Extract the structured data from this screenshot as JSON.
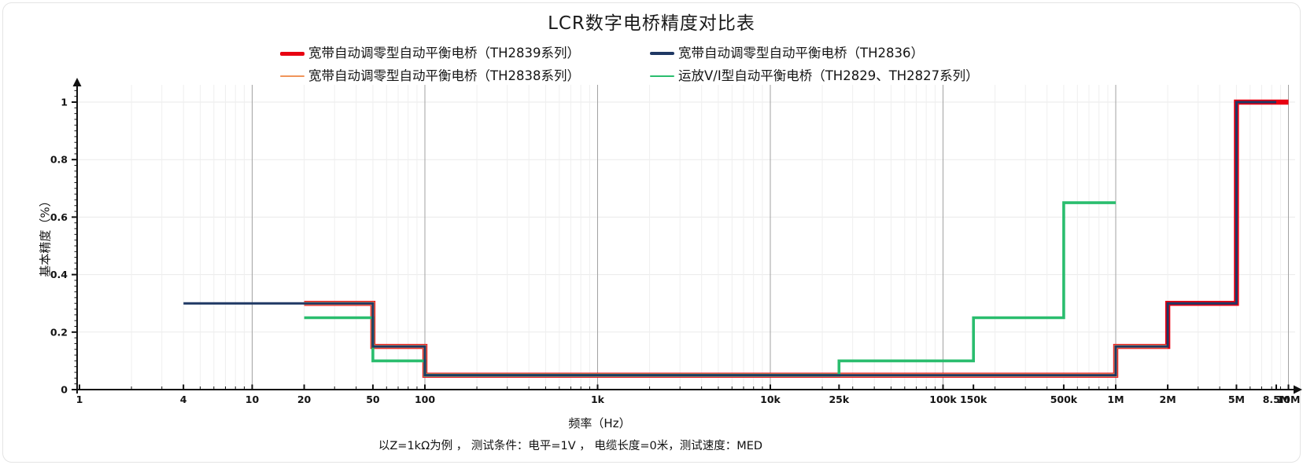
{
  "legend": {
    "items": [
      {
        "label": "宽带自动调零型自动平衡电桥（TH2839系列）",
        "color": "#e80011",
        "thickness": 5
      },
      {
        "label": "宽带自动调零型自动平衡电桥（TH2836）",
        "color": "#1f3864",
        "thickness": 3.5
      },
      {
        "label": "宽带自动调零型自动平衡电桥（TH2838系列）",
        "color": "#f0955a",
        "thickness": 2.5
      },
      {
        "label": "运放V/I型自动平衡电桥（TH2829、TH2827系列）",
        "color": "#2abd6e",
        "thickness": 2.5
      }
    ]
  },
  "chart_data": {
    "type": "line",
    "title": "LCR数字电桥精度对比表",
    "x_scale": "log",
    "xlabel": "频率（Hz）",
    "ylabel": "基本精度（%）",
    "xlim": [
      1,
      10000000
    ],
    "ylim": [
      0,
      1.05
    ],
    "grid": true,
    "legend_position": "top",
    "x_ticks": [
      {
        "f": 1,
        "label": "1"
      },
      {
        "f": 4,
        "label": "4"
      },
      {
        "f": 10,
        "label": "10"
      },
      {
        "f": 20,
        "label": "20"
      },
      {
        "f": 50,
        "label": "50"
      },
      {
        "f": 100,
        "label": "100"
      },
      {
        "f": 1000,
        "label": "1k"
      },
      {
        "f": 10000,
        "label": "10k"
      },
      {
        "f": 25000,
        "label": "25k"
      },
      {
        "f": 100000,
        "label": "100k"
      },
      {
        "f": 150000,
        "label": "150k"
      },
      {
        "f": 500000,
        "label": "500k"
      },
      {
        "f": 1000000,
        "label": "1M"
      },
      {
        "f": 2000000,
        "label": "2M"
      },
      {
        "f": 5000000,
        "label": "5M"
      },
      {
        "f": 8500000,
        "label": "8.5M"
      },
      {
        "f": 10000000,
        "label": "10M"
      }
    ],
    "y_ticks": [
      {
        "v": 0,
        "label": "0"
      },
      {
        "v": 0.2,
        "label": "0.2"
      },
      {
        "v": 0.4,
        "label": "0.4"
      },
      {
        "v": 0.6,
        "label": "0.6"
      },
      {
        "v": 0.8,
        "label": "0.8"
      },
      {
        "v": 1,
        "label": "1"
      }
    ],
    "series": [
      {
        "id": "th2839",
        "name": "宽带自动调零型自动平衡电桥（TH2839系列）",
        "color": "#e80011",
        "width": 6.4,
        "points": [
          [
            20,
            0.3
          ],
          [
            50,
            0.3
          ],
          [
            50,
            0.15
          ],
          [
            100,
            0.15
          ],
          [
            100,
            0.05
          ],
          [
            1000000,
            0.05
          ],
          [
            1000000,
            0.15
          ],
          [
            2000000,
            0.15
          ],
          [
            2000000,
            0.3
          ],
          [
            5000000,
            0.3
          ],
          [
            5000000,
            1
          ],
          [
            10000000,
            1
          ]
        ]
      },
      {
        "id": "th2838",
        "name": "宽带自动调零型自动平衡电桥（TH2838系列）",
        "color": "#f0955a",
        "width": 4.6,
        "points": [
          [
            20,
            0.3
          ],
          [
            50,
            0.3
          ],
          [
            50,
            0.15
          ],
          [
            100,
            0.15
          ],
          [
            100,
            0.05
          ],
          [
            1000000,
            0.05
          ],
          [
            1000000,
            0.15
          ],
          [
            2000000,
            0.15
          ]
        ]
      },
      {
        "id": "th2829-th2827",
        "name": "运放V/I型自动平衡电桥（TH2829、TH2827系列）",
        "color": "#2abd6e",
        "width": 3.6,
        "points": [
          [
            20,
            0.25
          ],
          [
            50,
            0.25
          ],
          [
            50,
            0.1
          ],
          [
            100,
            0.1
          ],
          [
            100,
            0.05
          ],
          [
            25000,
            0.05
          ],
          [
            25000,
            0.1
          ],
          [
            150000,
            0.1
          ],
          [
            150000,
            0.25
          ],
          [
            500000,
            0.25
          ],
          [
            500000,
            0.65
          ],
          [
            1000000,
            0.65
          ]
        ]
      },
      {
        "id": "th2836",
        "name": "宽带自动调零型自动平衡电桥（TH2836）",
        "color": "#1f3864",
        "width": 3,
        "points": [
          [
            4,
            0.3
          ],
          [
            50,
            0.3
          ],
          [
            50,
            0.15
          ],
          [
            100,
            0.15
          ],
          [
            100,
            0.05
          ],
          [
            1000000,
            0.05
          ],
          [
            1000000,
            0.15
          ],
          [
            2000000,
            0.15
          ],
          [
            2000000,
            0.3
          ],
          [
            5000000,
            0.3
          ],
          [
            5000000,
            1
          ],
          [
            8500000,
            1
          ]
        ]
      }
    ],
    "footnote": "以Z=1kΩ为例 ， 测试条件：电平=1V ， 电缆长度=0米，测试速度：MED"
  }
}
